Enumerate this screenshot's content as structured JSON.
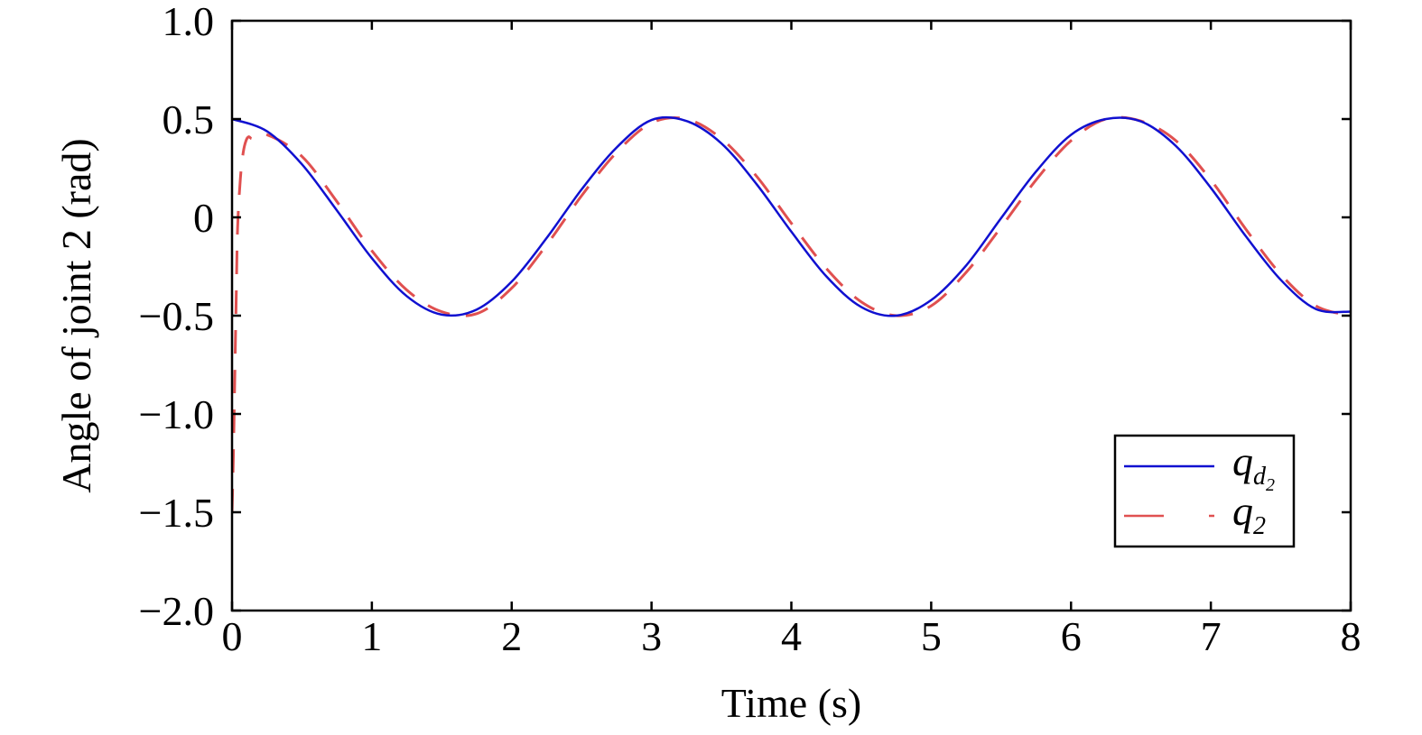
{
  "chart_data": {
    "type": "line",
    "title": "",
    "xlabel": "Time (s)",
    "ylabel": "Angle of joint 2 (rad)",
    "xlim": [
      0,
      8
    ],
    "ylim": [
      -2.0,
      1.0
    ],
    "xticks": [
      0,
      1,
      2,
      3,
      4,
      5,
      6,
      7,
      8
    ],
    "xtick_labels": [
      "0",
      "1",
      "2",
      "3",
      "4",
      "5",
      "6",
      "7",
      "8"
    ],
    "yticks": [
      1.0,
      0.5,
      0,
      -0.5,
      -1.0,
      -1.5,
      -2.0
    ],
    "ytick_labels": [
      "1.0",
      "0.5",
      "0",
      "−0.5",
      "−1.0",
      "−1.5",
      "−2.0"
    ],
    "grid": false,
    "legend_position": "lower-right",
    "legend": {
      "qd": {
        "base": "q",
        "sub": "d",
        "subsub": "2"
      },
      "q": {
        "base": "q",
        "sub": "2"
      }
    },
    "series": [
      {
        "id": "desired",
        "style": "solid",
        "color": "#1010d0",
        "x": [
          0.0,
          0.25,
          0.5,
          0.75,
          1.0,
          1.25,
          1.5,
          1.75,
          2.0,
          2.25,
          2.5,
          2.75,
          3.0,
          3.25,
          3.5,
          3.75,
          4.0,
          4.25,
          4.5,
          4.75,
          5.0,
          5.25,
          5.5,
          5.75,
          6.0,
          6.25,
          6.5,
          6.75,
          7.0,
          7.25,
          7.5,
          7.75,
          8.0
        ],
        "y": [
          0.5,
          0.438,
          0.27,
          0.035,
          -0.208,
          -0.401,
          -0.495,
          -0.469,
          -0.327,
          -0.105,
          0.142,
          0.355,
          0.495,
          0.49,
          0.376,
          0.17,
          -0.073,
          -0.3,
          -0.456,
          -0.5,
          -0.421,
          -0.245,
          -0.004,
          0.233,
          0.42,
          0.5,
          0.488,
          0.363,
          0.15,
          -0.096,
          -0.318,
          -0.466,
          -0.48
        ]
      },
      {
        "id": "actual",
        "style": "dashed",
        "color": "#e05050",
        "x": [
          0.0,
          0.01,
          0.02,
          0.03,
          0.04,
          0.06,
          0.08,
          0.1,
          0.12,
          0.15,
          0.25,
          0.5,
          0.75,
          1.0,
          1.25,
          1.5,
          1.75,
          2.0,
          2.25,
          2.5,
          2.75,
          3.0,
          3.25,
          3.5,
          3.75,
          4.0,
          4.25,
          4.5,
          4.75,
          5.0,
          5.25,
          5.5,
          5.75,
          6.0,
          6.25,
          6.5,
          6.75,
          7.0,
          7.25,
          7.5,
          7.75,
          8.0
        ],
        "y": [
          -1.5,
          -1.2,
          -0.8,
          -0.4,
          -0.05,
          0.2,
          0.33,
          0.39,
          0.41,
          0.4,
          0.42,
          0.31,
          0.08,
          -0.17,
          -0.37,
          -0.48,
          -0.49,
          -0.36,
          -0.14,
          0.11,
          0.33,
          0.48,
          0.5,
          0.4,
          0.21,
          -0.03,
          -0.26,
          -0.43,
          -0.5,
          -0.45,
          -0.28,
          -0.05,
          0.19,
          0.39,
          0.5,
          0.49,
          0.39,
          0.19,
          -0.06,
          -0.29,
          -0.45,
          -0.5
        ]
      }
    ]
  }
}
